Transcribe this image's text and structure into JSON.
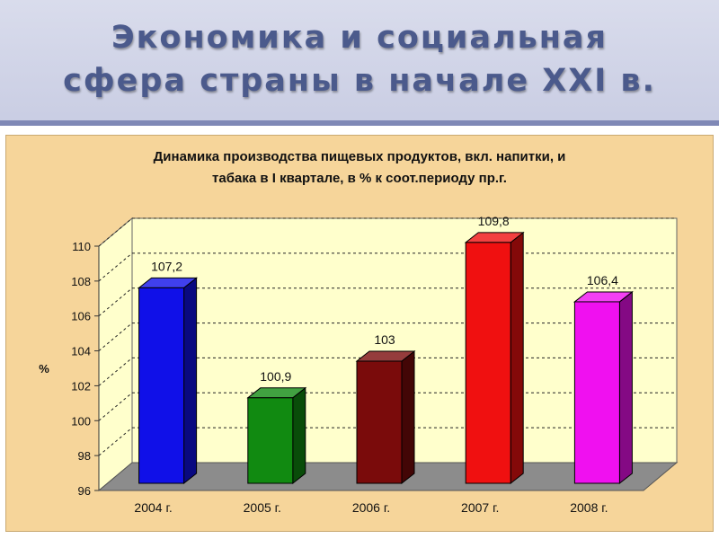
{
  "slide": {
    "title_line1": "Экономика и социальная",
    "title_line2": "сфера страны в начале XXI в."
  },
  "chart_data": {
    "type": "bar",
    "title_lines": [
      "Динамика производства пищевых продуктов, вкл. напитки, и",
      "табака в I квартале, в % к соот.периоду пр.г."
    ],
    "ylabel": "%",
    "xlabel": "",
    "categories": [
      "2004 г.",
      "2005 г.",
      "2006 г.",
      "2007 г.",
      "2008 г."
    ],
    "values": [
      107.2,
      100.9,
      103,
      109.8,
      106.4
    ],
    "value_labels": [
      "107,2",
      "100,9",
      "103",
      "109,8",
      "106,4"
    ],
    "bar_colors": [
      "#1010e8",
      "#118a11",
      "#7a0b0b",
      "#f01010",
      "#f010f0"
    ],
    "ylim": [
      96,
      110
    ],
    "yticks": [
      96,
      98,
      100,
      102,
      104,
      106,
      108,
      110
    ],
    "grid": true,
    "three_d": true,
    "wall_color": "#ffffcc",
    "floor_color": "#8c8c8c"
  }
}
